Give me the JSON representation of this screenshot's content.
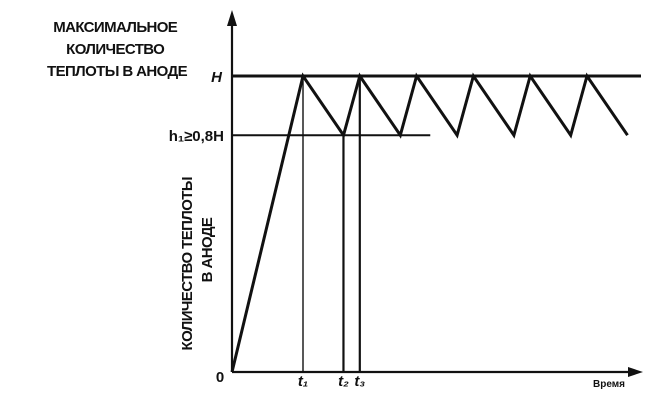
{
  "chart_data": {
    "type": "line",
    "title": [
      "МАКСИМАЛЬНОЕ",
      "КОЛИЧЕСТВО",
      "ТЕПЛОТЫ В АНОДЕ"
    ],
    "ylabel": [
      "КОЛИЧЕСТВО ТЕПЛОТЫ",
      "В АНОДЕ"
    ],
    "xlabel": "Время",
    "origin_label": "0",
    "y_levels": [
      {
        "key": "H",
        "label": "H",
        "value": 1.0
      },
      {
        "key": "h1",
        "label": "h₁≥0,8H",
        "value": 0.8
      }
    ],
    "x_markers": [
      {
        "label": "t₁",
        "x": 1.0
      },
      {
        "label": "t₂",
        "x": 1.57
      },
      {
        "label": "t₃",
        "x": 1.8
      }
    ],
    "xlim": [
      0,
      5.1
    ],
    "ylim": [
      0,
      1.3
    ],
    "series": [
      {
        "x": [
          0,
          1.0,
          1.57,
          1.8,
          2.37,
          2.6,
          3.17,
          3.4,
          3.97,
          4.2,
          4.77,
          5.0,
          5.57
        ],
        "y": [
          0,
          1.0,
          0.8,
          1.0,
          0.8,
          1.0,
          0.8,
          1.0,
          0.8,
          1.0,
          0.8,
          1.0,
          0.8
        ]
      }
    ]
  }
}
